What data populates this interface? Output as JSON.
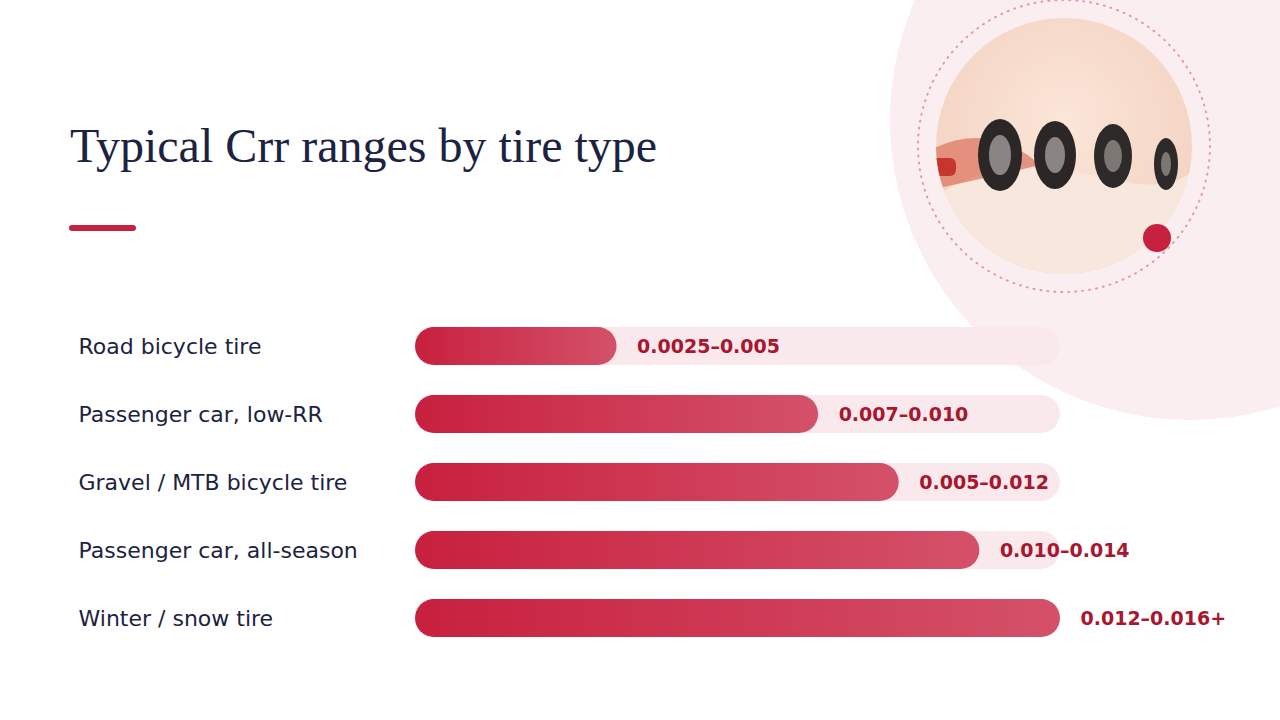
{
  "chart_data": {
    "type": "bar",
    "orientation": "horizontal",
    "title": "Typical Crr ranges by tire type",
    "categories": [
      "Road bicycle tire",
      "Passenger car, low-RR",
      "Gravel / MTB bicycle tire",
      "Passenger car, all-season",
      "Winter / snow tire"
    ],
    "values": [
      0.005,
      0.01,
      0.012,
      0.014,
      0.016
    ],
    "value_labels": [
      "0.0025–0.005",
      "0.007–0.010",
      "0.005–0.012",
      "0.010–0.014",
      "0.012–0.016+"
    ],
    "data_labels": true,
    "color": "#c8203f",
    "xlim": [
      0,
      0.016
    ],
    "tick_labels": false,
    "grid": false
  }
}
